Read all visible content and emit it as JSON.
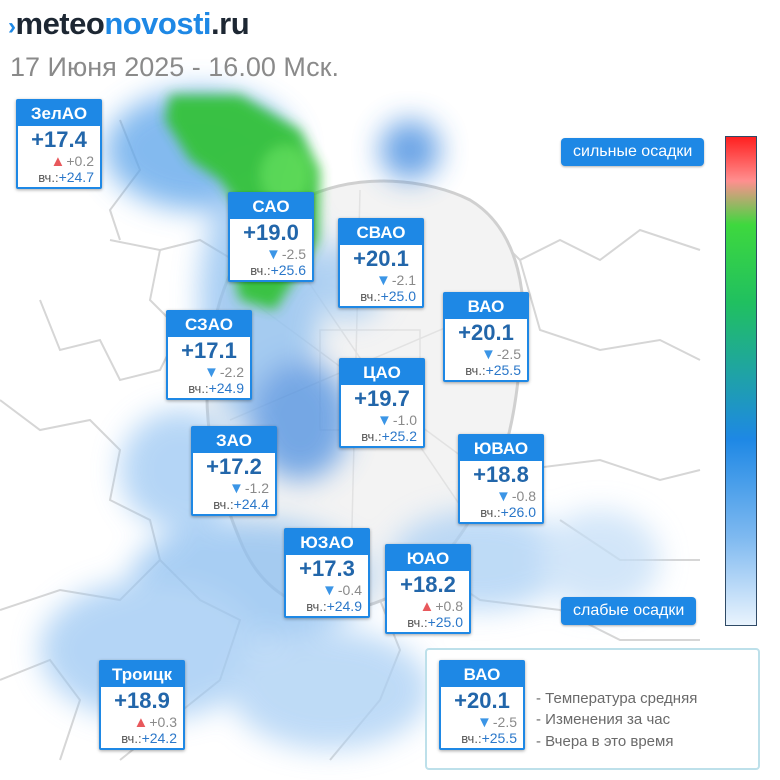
{
  "header": {
    "logo_mark": "›",
    "logo_meteo": "meteo",
    "logo_novosti": "novosti",
    "logo_ru": ".ru",
    "subtitle": "17 Июня 2025 - 16.00 Мск."
  },
  "scale": {
    "top_label": "сильные осадки",
    "bottom_label": "слабые осадки",
    "colors": [
      "#ff2020",
      "#3ed83e",
      "#1e88e5",
      "#e9f3fd"
    ]
  },
  "districts": [
    {
      "name": "ЗелАО",
      "temp": "+17.4",
      "dir": "up",
      "change": "+0.2",
      "yest_label": "вч.:",
      "yest": "+24.7"
    },
    {
      "name": "САО",
      "temp": "+19.0",
      "dir": "down",
      "change": "-2.5",
      "yest_label": "вч.:",
      "yest": "+25.6"
    },
    {
      "name": "СВАО",
      "temp": "+20.1",
      "dir": "down",
      "change": "-2.1",
      "yest_label": "вч.:",
      "yest": "+25.0"
    },
    {
      "name": "ВАО",
      "temp": "+20.1",
      "dir": "down",
      "change": "-2.5",
      "yest_label": "вч.:",
      "yest": "+25.5"
    },
    {
      "name": "СЗАО",
      "temp": "+17.1",
      "dir": "down",
      "change": "-2.2",
      "yest_label": "вч.:",
      "yest": "+24.9"
    },
    {
      "name": "ЦАО",
      "temp": "+19.7",
      "dir": "down",
      "change": "-1.0",
      "yest_label": "вч.:",
      "yest": "+25.2"
    },
    {
      "name": "ЗАО",
      "temp": "+17.2",
      "dir": "down",
      "change": "-1.2",
      "yest_label": "вч.:",
      "yest": "+24.4"
    },
    {
      "name": "ЮВАО",
      "temp": "+18.8",
      "dir": "down",
      "change": "-0.8",
      "yest_label": "вч.:",
      "yest": "+26.0"
    },
    {
      "name": "ЮЗАО",
      "temp": "+17.3",
      "dir": "down",
      "change": "-0.4",
      "yest_label": "вч.:",
      "yest": "+24.9"
    },
    {
      "name": "ЮАО",
      "temp": "+18.2",
      "dir": "up",
      "change": "+0.8",
      "yest_label": "вч.:",
      "yest": "+25.0"
    },
    {
      "name": "Троицк",
      "temp": "+18.9",
      "dir": "up",
      "change": "+0.3",
      "yest_label": "вч.:",
      "yest": "+24.2"
    }
  ],
  "legend": {
    "card": {
      "name": "ВАО",
      "temp": "+20.1",
      "dir": "down",
      "change": "-2.5",
      "yest_label": "вч.:",
      "yest": "+25.5"
    },
    "line1": "- Температура средняя",
    "line2": "- Изменения за час",
    "line3": "- Вчера в это время"
  }
}
